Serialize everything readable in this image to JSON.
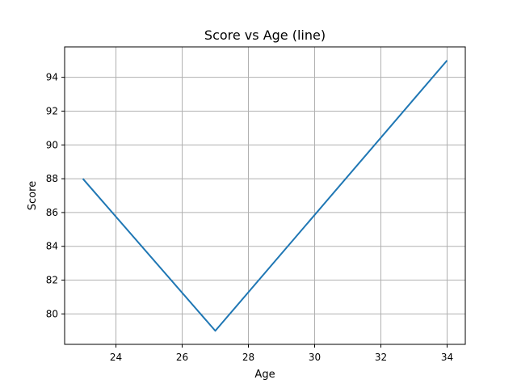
{
  "chart_data": {
    "type": "line",
    "title": "Score vs Age (line)",
    "xlabel": "Age",
    "ylabel": "Score",
    "x": [
      23,
      27,
      34
    ],
    "series": [
      {
        "values": [
          88,
          79,
          95
        ],
        "color": "#1f77b4"
      }
    ],
    "xlim": [
      22.45,
      34.55
    ],
    "ylim": [
      78.2,
      95.8
    ],
    "xticks": [
      24,
      26,
      28,
      30,
      32,
      34
    ],
    "yticks": [
      80,
      82,
      84,
      86,
      88,
      90,
      92,
      94
    ],
    "grid": true
  }
}
